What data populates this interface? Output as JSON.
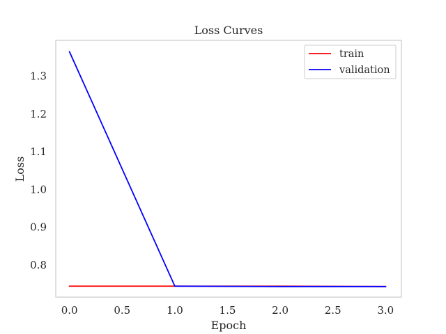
{
  "chart_data": {
    "type": "line",
    "title": "Loss Curves",
    "xlabel": "Epoch",
    "ylabel": "Loss",
    "xlim": [
      -0.13,
      3.15
    ],
    "ylim": [
      0.715,
      1.395
    ],
    "x_ticks": [
      0.0,
      0.5,
      1.0,
      1.5,
      2.0,
      2.5,
      3.0
    ],
    "x_tick_labels": [
      "0.0",
      "0.5",
      "1.0",
      "1.5",
      "2.0",
      "2.5",
      "3.0"
    ],
    "y_ticks": [
      0.8,
      0.9,
      1.0,
      1.1,
      1.2,
      1.3
    ],
    "y_tick_labels": [
      "0.8",
      "0.9",
      "1.0",
      "1.1",
      "1.2",
      "1.3"
    ],
    "grid": false,
    "legend_position": "top-right",
    "series": [
      {
        "name": "train",
        "color": "#ff0000",
        "x": [
          0,
          1,
          2,
          3
        ],
        "y": [
          0.744,
          0.744,
          0.744,
          0.743
        ]
      },
      {
        "name": "validation",
        "color": "#0000ff",
        "x": [
          0,
          1,
          2,
          3
        ],
        "y": [
          1.365,
          0.744,
          0.743,
          0.743
        ]
      }
    ]
  }
}
